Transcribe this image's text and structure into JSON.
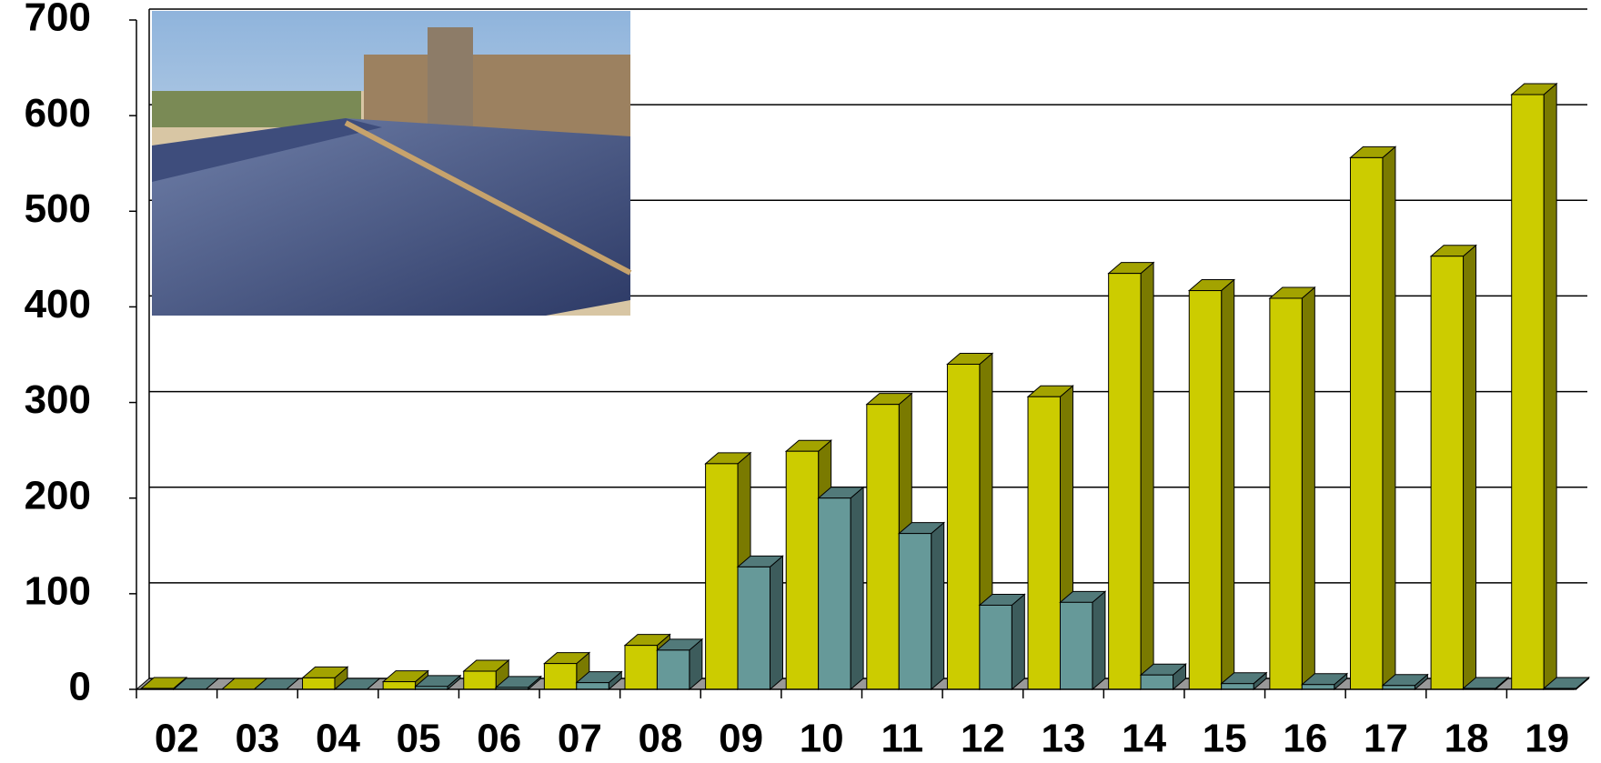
{
  "chart_data": {
    "type": "bar3d",
    "categories": [
      "02",
      "03",
      "04",
      "05",
      "06",
      "07",
      "08",
      "09",
      "10",
      "11",
      "12",
      "13",
      "14",
      "15",
      "16",
      "17",
      "18",
      "19"
    ],
    "series": [
      {
        "color": "#cccc00",
        "values": [
          1,
          0,
          12,
          8,
          19,
          27,
          46,
          236,
          249,
          298,
          340,
          306,
          435,
          417,
          409,
          556,
          453,
          622
        ]
      },
      {
        "color": "#669999",
        "values": [
          0,
          0,
          0,
          3,
          2,
          7,
          41,
          128,
          200,
          163,
          88,
          91,
          15,
          6,
          5,
          4,
          1,
          1
        ]
      }
    ],
    "ylim": [
      0,
      700
    ],
    "yticks": [
      0,
      100,
      200,
      300,
      400,
      500,
      600,
      700
    ],
    "grid": true
  }
}
